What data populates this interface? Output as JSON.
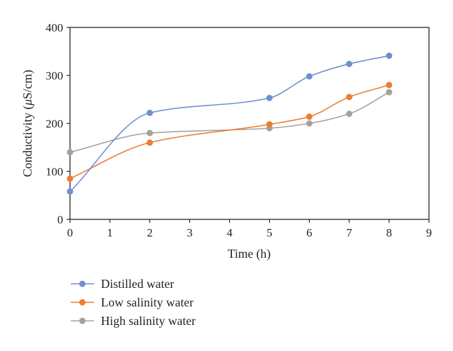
{
  "chart_data": {
    "type": "line",
    "xlabel": "Time (h)",
    "ylabel_prefix": "Conductivity (",
    "ylabel_mu": "μ",
    "ylabel_suffix": "S/cm)",
    "xlim": [
      0,
      9
    ],
    "ylim": [
      0,
      400
    ],
    "xticks": [
      "0",
      "1",
      "2",
      "3",
      "4",
      "5",
      "6",
      "7",
      "8",
      "9"
    ],
    "yticks": [
      "0",
      "100",
      "200",
      "300",
      "400"
    ],
    "grid": false,
    "smooth": true,
    "legend_position": "bottom-left",
    "x": [
      0,
      2,
      5,
      6,
      7,
      8
    ],
    "series": [
      {
        "name": "Distilled water",
        "color": "#6f8fcd",
        "values": [
          58,
          222,
          253,
          298,
          324,
          341
        ]
      },
      {
        "name": "Low salinity water",
        "color": "#ec7d31",
        "values": [
          85,
          160,
          198,
          214,
          255,
          280
        ]
      },
      {
        "name": "High salinity water",
        "color": "#a9a09b",
        "values": [
          140,
          180,
          190,
          200,
          220,
          265
        ]
      }
    ]
  }
}
